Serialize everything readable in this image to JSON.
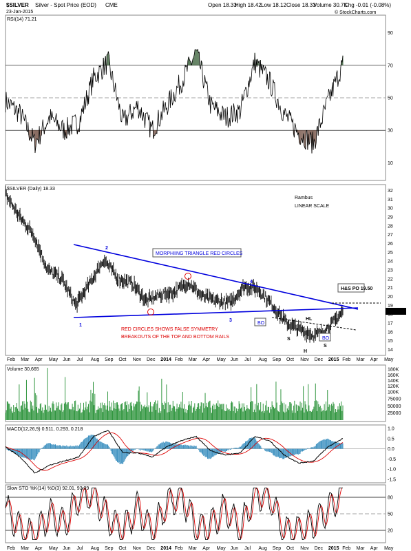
{
  "header": {
    "symbol": "$SILVER",
    "name": "Silver - Spot Price (EOD)",
    "exchange": "CME",
    "date": "23-Jan-2015",
    "open": "Open 18.33",
    "high": "High 18.42",
    "low": "Low 18.12",
    "close": "Close 18.33",
    "volume": "Volume 30.7K",
    "chg": "Chg -0.01 (-0.08%)",
    "watermark": "© StockCharts.com"
  },
  "colors": {
    "price": "#000000",
    "trendline": "#0000dd",
    "annotation_red": "#dd0000",
    "rsi_fill": "#8b6f64",
    "rsi_fill_top": "#5a7a5a",
    "volume": "#1a8a2a",
    "macd_hist": "#3a8fbf",
    "macd_signal": "#dd0000",
    "sto_d": "#dd0000"
  },
  "x_axis": {
    "labels": [
      "Feb",
      "Mar",
      "Apr",
      "May",
      "Jun",
      "Jul",
      "Aug",
      "Sep",
      "Oct",
      "Nov",
      "Dec",
      "2014",
      "Feb",
      "Mar",
      "Apr",
      "May",
      "Jun",
      "Jul",
      "Aug",
      "Sep",
      "Oct",
      "Nov",
      "Dec",
      "2015",
      "Feb",
      "Mar",
      "Apr",
      "May"
    ]
  },
  "panels": {
    "rsi": {
      "legend": "RSI(14) 71.21",
      "ticks": [
        "90",
        "70",
        "50",
        "30",
        "10"
      ],
      "current": "71.21"
    },
    "price": {
      "legend": "$SILVER (Daily) 18.33",
      "ticks": [
        "32",
        "31",
        "30",
        "29",
        "28",
        "27",
        "26",
        "25",
        "24",
        "23",
        "22",
        "21",
        "20",
        "19",
        "18",
        "17",
        "16",
        "15",
        "14"
      ],
      "annotations": {
        "author": "Rambus",
        "scale": "LINEAR SCALE",
        "triangle": "MORPHIING TRIANGLE RED CIRCLES",
        "false_breakouts_1": "RED CIRCLES SHOWS FALSE SYMMETRY",
        "false_breakouts_2": "BREAKOUTS OF THE TOP AND BOTTOM RAILS",
        "po": "H&S PO 19.50",
        "bo": "BO",
        "hl": "HL",
        "s": "S",
        "h": "H",
        "p1": "1",
        "p2": "2",
        "p3": "3",
        "p4": "4"
      },
      "current": "18.33"
    },
    "volume": {
      "legend": "Volume 30,665",
      "ticks": [
        "180K",
        "160K",
        "140K",
        "120K",
        "100K",
        "75000",
        "50000",
        "25000"
      ]
    },
    "macd": {
      "legend": "MACD(12,26,9) 0.511, 0.293, 0.218",
      "ticks": [
        "1.0",
        "0.5",
        "0.0",
        "-0.5",
        "-1.0",
        "-1.5"
      ]
    },
    "sto": {
      "legend": "Slow STO %K(14) %D(3) 92.01, 93.29",
      "ticks": [
        "80",
        "50",
        "20"
      ]
    }
  },
  "chart_data": [
    {
      "type": "line",
      "title": "RSI(14)",
      "x": [
        "Feb 2013",
        "Mar",
        "Apr",
        "May",
        "Jun",
        "Jul",
        "Aug",
        "Sep",
        "Oct",
        "Nov",
        "Dec",
        "2014",
        "Feb",
        "Mar",
        "Apr",
        "May",
        "Jun",
        "Jul",
        "Aug",
        "Sep",
        "Oct",
        "Nov",
        "Dec",
        "2015"
      ],
      "values": [
        48,
        40,
        22,
        38,
        30,
        35,
        62,
        72,
        35,
        45,
        30,
        45,
        60,
        78,
        45,
        38,
        42,
        72,
        60,
        40,
        28,
        22,
        48,
        71
      ],
      "ylim": [
        0,
        100
      ]
    },
    {
      "type": "line",
      "title": "$SILVER (Daily)",
      "x": [
        "Feb 2013",
        "Mar",
        "Apr",
        "May",
        "Jun",
        "Jul",
        "Aug",
        "Sep",
        "Oct",
        "Nov",
        "Dec",
        "2014",
        "Feb",
        "Mar",
        "Apr",
        "May",
        "Jun",
        "Jul",
        "Aug",
        "Sep",
        "Oct",
        "Nov",
        "Dec",
        "2015",
        "Jan 23 2015"
      ],
      "values": [
        31.6,
        29.0,
        27.0,
        23.0,
        22.0,
        19.0,
        21.5,
        24.2,
        22.0,
        21.5,
        19.5,
        20.2,
        20.5,
        21.6,
        20.0,
        19.5,
        19.3,
        21.2,
        20.8,
        19.0,
        17.0,
        16.2,
        15.6,
        16.5,
        18.33
      ],
      "ylim": [
        13.5,
        32.5
      ]
    },
    {
      "type": "line",
      "title": "MACD(12,26,9)",
      "x": [
        "Feb 2013",
        "Mar",
        "Apr",
        "May",
        "Jun",
        "Jul",
        "Aug",
        "Sep",
        "Oct",
        "Nov",
        "Dec",
        "2014",
        "Feb",
        "Mar",
        "Apr",
        "May",
        "Jun",
        "Jul",
        "Aug",
        "Sep",
        "Oct",
        "Nov",
        "Dec",
        "2015"
      ],
      "values": [
        0.1,
        -0.4,
        -1.2,
        -0.8,
        -0.6,
        -0.4,
        0.6,
        0.9,
        -0.2,
        -0.2,
        -0.4,
        0.1,
        0.4,
        0.6,
        -0.1,
        -0.3,
        -0.2,
        0.6,
        0.4,
        -0.3,
        -0.7,
        -0.6,
        0.1,
        0.51
      ],
      "ylim": [
        -1.6,
        1.1
      ]
    },
    {
      "type": "line",
      "title": "Slow STO %K(14) %D(3)",
      "x": [
        "Feb 2013",
        "Mar",
        "Apr",
        "May",
        "Jun",
        "Jul",
        "Aug",
        "Sep",
        "Oct",
        "Nov",
        "Dec",
        "2014",
        "Feb",
        "Mar",
        "Apr",
        "May",
        "Jun",
        "Jul",
        "Aug",
        "Sep",
        "Oct",
        "Nov",
        "Dec",
        "2015"
      ],
      "values": [
        60,
        20,
        10,
        50,
        30,
        80,
        90,
        40,
        20,
        60,
        15,
        70,
        85,
        20,
        30,
        60,
        20,
        90,
        80,
        15,
        20,
        30,
        60,
        92
      ],
      "ylim": [
        0,
        100
      ]
    }
  ]
}
